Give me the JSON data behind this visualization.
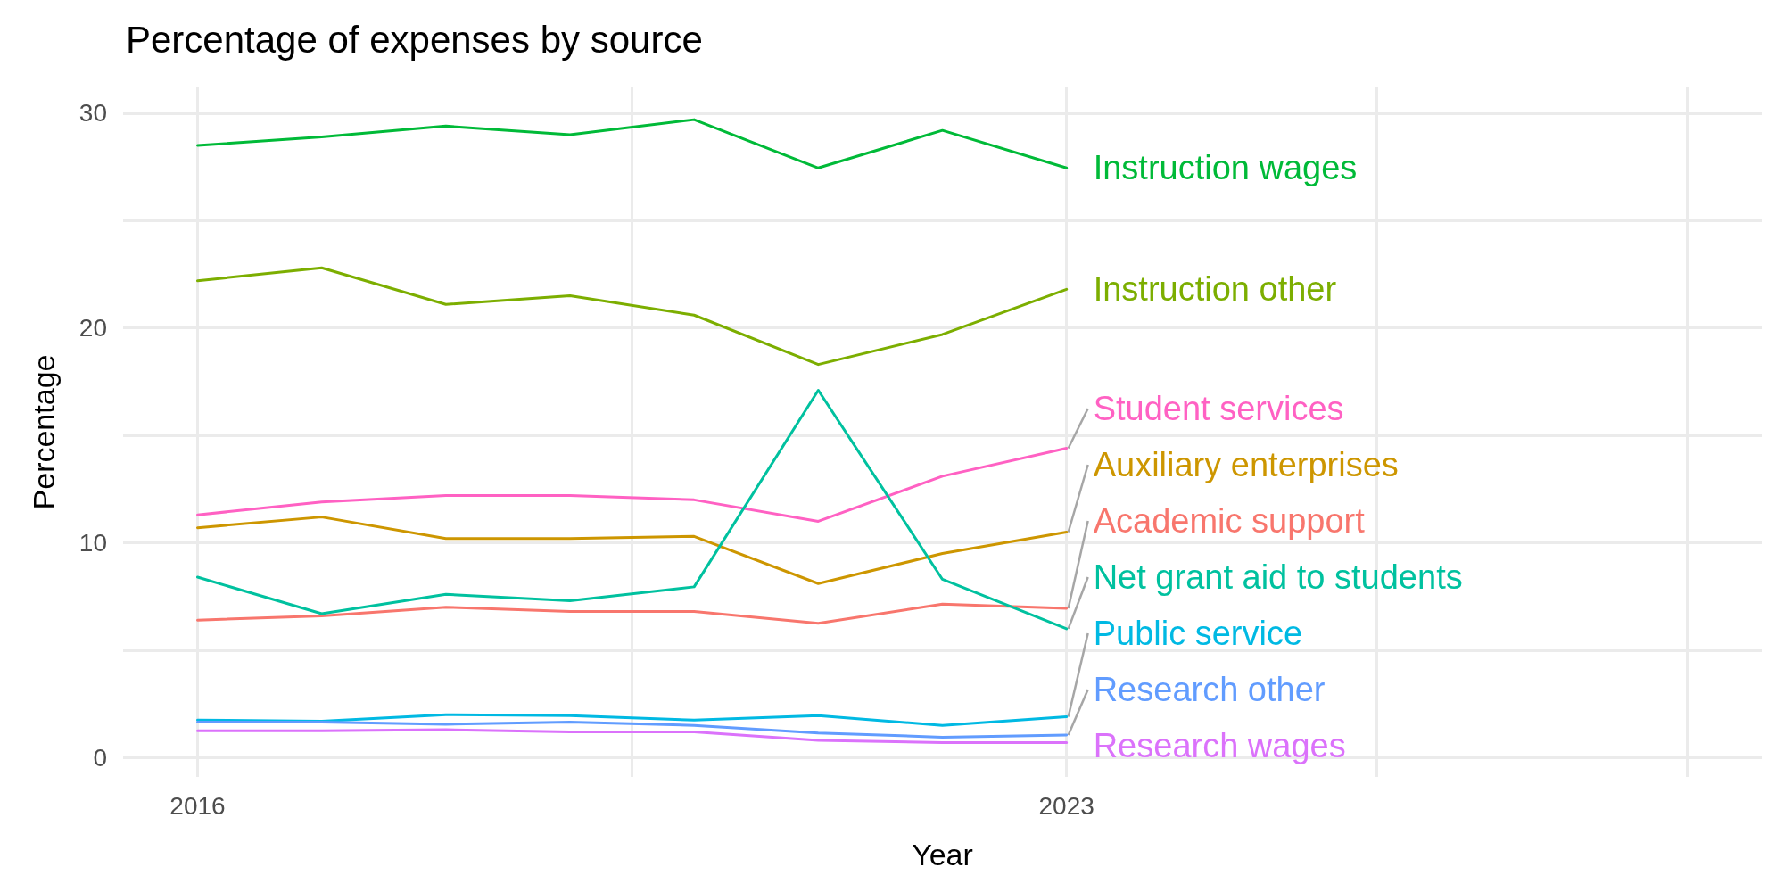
{
  "chart_data": {
    "type": "line",
    "title": "Percentage of expenses by source",
    "xlabel": "Year",
    "ylabel": "Percentage",
    "x": [
      2016,
      2017,
      2018,
      2019,
      2020,
      2021,
      2022,
      2023
    ],
    "xlim": [
      2015.4,
      2028.6
    ],
    "xticks": [
      2016,
      {
        "value": 2019.5,
        "label": null
      },
      2023,
      {
        "value": 2025.5,
        "label": null
      },
      {
        "value": 2028,
        "label": null
      }
    ],
    "ylim": [
      -0.9,
      31.2
    ],
    "yticks": [
      0,
      {
        "value": 5,
        "label": null
      },
      10,
      {
        "value": 15,
        "label": null
      },
      20,
      {
        "value": 25,
        "label": null
      },
      30
    ],
    "grid": true,
    "legend": false,
    "marker": "none",
    "line_style": "solid",
    "series": [
      {
        "name": "Instruction wages",
        "color": "#00ba38",
        "values": [
          28.5,
          28.9,
          29.4,
          29.0,
          29.7,
          27.45,
          29.2,
          27.45
        ]
      },
      {
        "name": "Instruction other",
        "color": "#7cae00",
        "values": [
          22.2,
          22.8,
          21.1,
          21.5,
          20.6,
          18.3,
          19.7,
          21.8
        ]
      },
      {
        "name": "Student services",
        "color": "#ff61c3",
        "values": [
          11.3,
          11.9,
          12.2,
          12.2,
          12.0,
          11.0,
          13.1,
          14.4
        ]
      },
      {
        "name": "Auxiliary enterprises",
        "color": "#cd9600",
        "values": [
          10.7,
          11.2,
          10.2,
          10.2,
          10.3,
          8.1,
          9.5,
          10.5
        ]
      },
      {
        "name": "Academic support",
        "color": "#f8766d",
        "values": [
          6.4,
          6.6,
          7.0,
          6.8,
          6.8,
          6.25,
          7.15,
          6.95
        ]
      },
      {
        "name": "Net grant aid to students",
        "color": "#00c19f",
        "values": [
          8.4,
          6.7,
          7.6,
          7.3,
          7.95,
          17.1,
          8.3,
          6.0
        ]
      },
      {
        "name": "Public service",
        "color": "#00b9e3",
        "values": [
          1.75,
          1.7,
          2.0,
          1.95,
          1.75,
          1.95,
          1.5,
          1.9
        ]
      },
      {
        "name": "Research other",
        "color": "#619cff",
        "values": [
          1.65,
          1.65,
          1.55,
          1.65,
          1.5,
          1.15,
          0.95,
          1.05
        ]
      },
      {
        "name": "Research wages",
        "color": "#db72fb",
        "values": [
          1.25,
          1.25,
          1.3,
          1.2,
          1.2,
          0.8,
          0.7,
          0.7
        ]
      }
    ]
  }
}
